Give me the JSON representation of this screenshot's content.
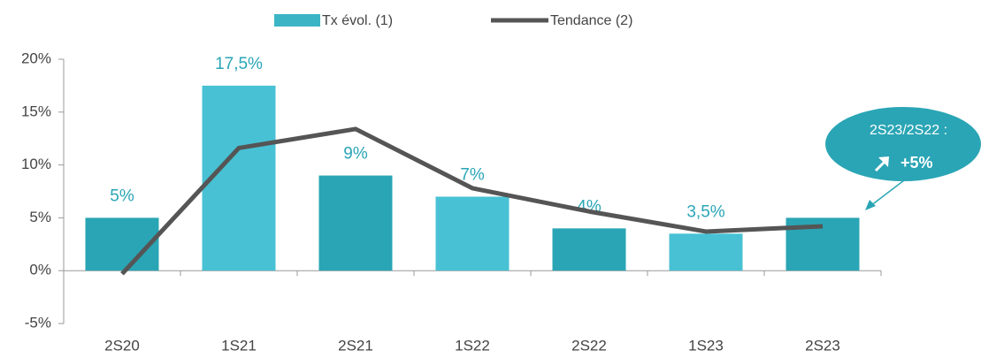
{
  "chart_data": {
    "type": "bar_line",
    "categories": [
      "2S20",
      "1S21",
      "2S21",
      "1S22",
      "2S22",
      "1S23",
      "2S23"
    ],
    "series": [
      {
        "name": "Tx évol. (1)",
        "type": "bar",
        "color": "#3bb5c6",
        "colors": [
          "#2aa5b5",
          "#48c1d4",
          "#2aa5b5",
          "#48c1d4",
          "#2aa5b5",
          "#48c1d4",
          "#2aa5b5"
        ],
        "values": [
          5,
          17.5,
          9,
          7,
          4,
          3.5,
          5
        ],
        "value_labels": [
          "5%",
          "17,5%",
          "9%",
          "7%",
          "4%",
          "3,5%",
          null
        ]
      },
      {
        "name": "Tendance (2)",
        "type": "line",
        "color": "#555555",
        "values": [
          -0.3,
          11.6,
          13.4,
          7.8,
          5.6,
          3.7,
          4.2
        ]
      }
    ],
    "ylim": [
      -5,
      20
    ],
    "yticks": [
      {
        "value": -5,
        "label": "-5%"
      },
      {
        "value": 0,
        "label": "0%"
      },
      {
        "value": 5,
        "label": "5%"
      },
      {
        "value": 10,
        "label": "10%"
      },
      {
        "value": 15,
        "label": "15%"
      },
      {
        "value": 20,
        "label": "20%"
      }
    ],
    "legend": "top",
    "annotation": {
      "title": "2S23/2S22 :",
      "text": "+5%"
    }
  }
}
